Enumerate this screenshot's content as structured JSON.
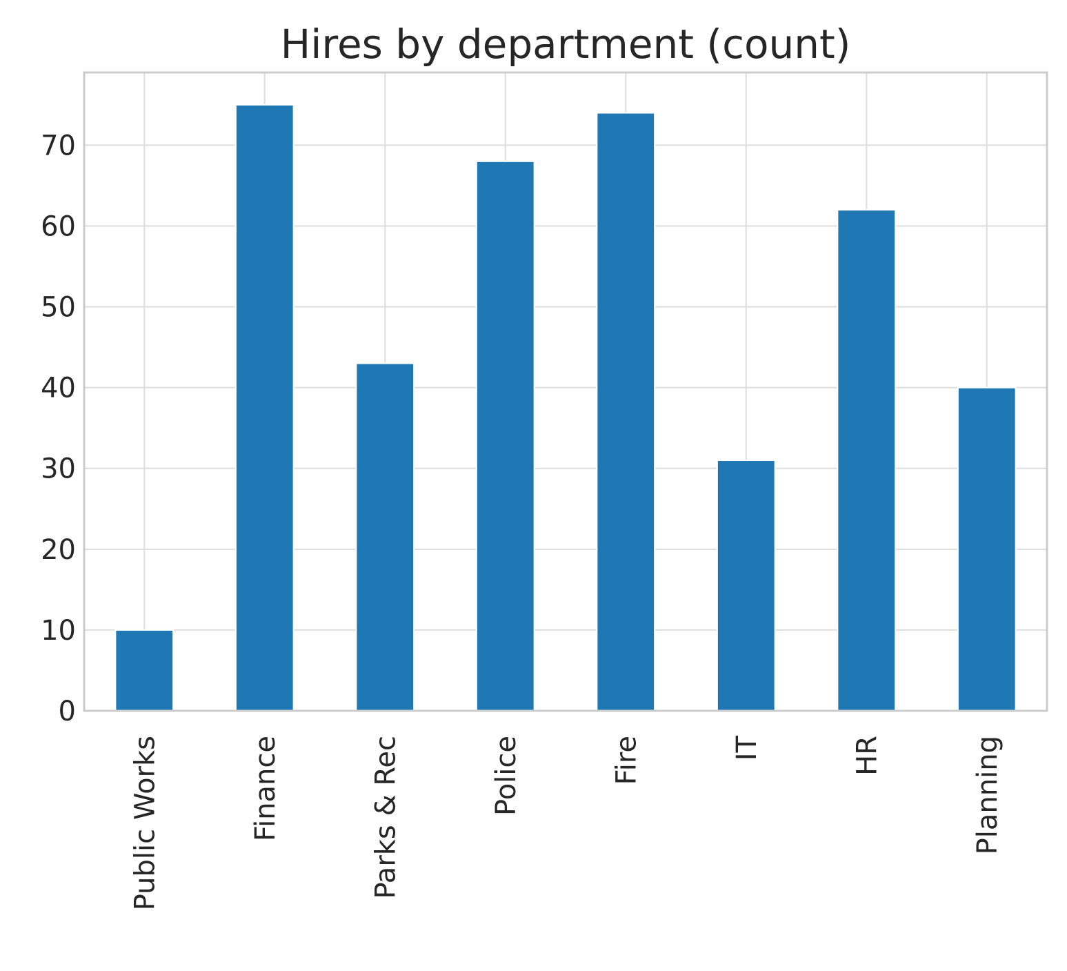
{
  "chart_data": {
    "type": "bar",
    "title": "Hires by department (count)",
    "xlabel": "",
    "ylabel": "",
    "categories": [
      "Public Works",
      "Finance",
      "Parks & Rec",
      "Police",
      "Fire",
      "IT",
      "HR",
      "Planning"
    ],
    "values": [
      10,
      75,
      43,
      68,
      74,
      31,
      62,
      40
    ],
    "ylim": [
      0,
      79
    ],
    "yticks": [
      0,
      10,
      20,
      30,
      40,
      50,
      60,
      70
    ],
    "grid": true,
    "legend": "none",
    "bar_color": "#1f77b4",
    "grid_color": "#dddddd",
    "frame_color": "#cccccc",
    "text_color": "#262626"
  }
}
